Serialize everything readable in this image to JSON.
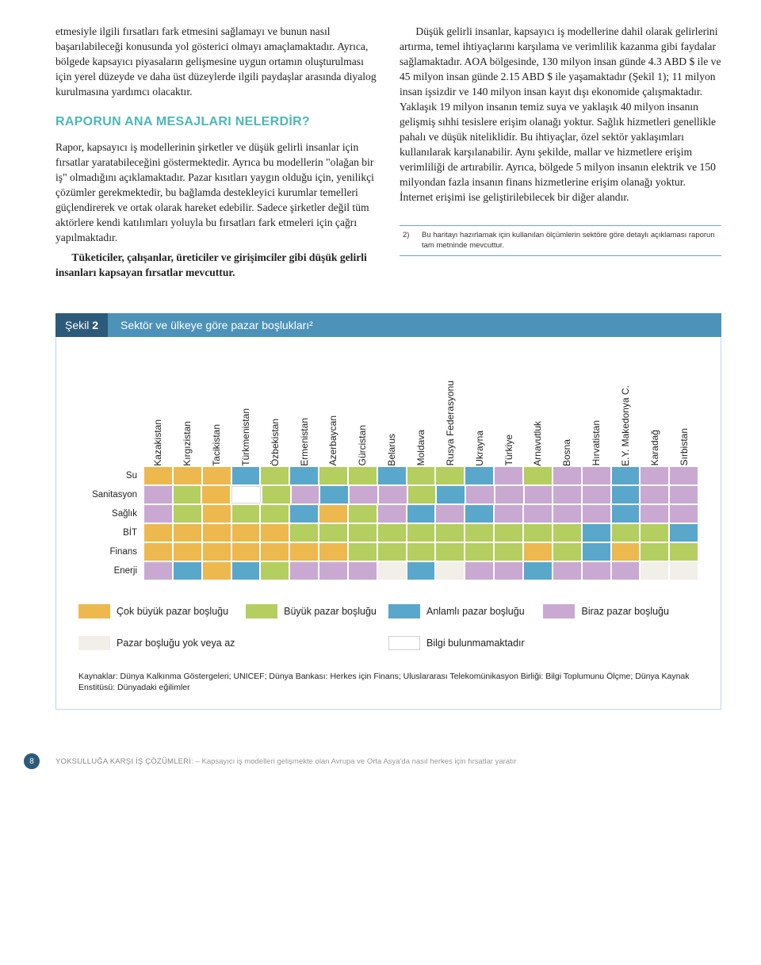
{
  "text": {
    "left_p1": "etmesiyle ilgili fırsatları fark etmesini sağlamayı ve bunun nasıl başarılabileceği konusunda yol gösterici olmayı amaçlamaktadır. Ayrıca, bölgede kapsayıcı piyasaların gelişmesine uygun ortamın oluşturulması için yerel düzeyde ve daha üst düzeylerde ilgili paydaşlar arasında diyalog kurulmasına yardımcı olacaktır.",
    "left_head": "RAPORUN ANA MESAJLARI NELERDİR?",
    "left_p2": "Rapor, kapsayıcı iş modellerinin şirketler ve düşük gelirli insanlar için fırsatlar yaratabileceğini göstermektedir. Ayrıca bu modellerin \"olağan bir iş\" olmadığını açıklamaktadır. Pazar kısıtları yaygın olduğu için, yenilikçi çözümler gerekmektedir, bu bağlamda destekleyici kurumlar temelleri güçlendirerek ve ortak olarak hareket edebilir. Sadece şirketler değil tüm aktörlere kendi katılımları yoluyla bu fırsatları fark etmeleri için çağrı yapılmaktadır.",
    "left_p3": "Tüketiciler, çalışanlar, üreticiler ve girişimciler gibi düşük gelirli insanları kapsayan fırsatlar mevcuttur.",
    "right_p1": "Düşük gelirli insanlar, kapsayıcı iş modellerine dahil olarak gelirlerini artırma, temel ihtiyaçlarını karşılama ve verimlilik kazanma gibi faydalar sağlamaktadır. AOA bölgesinde, 130 milyon insan günde 4.3 ABD $ ile ve 45 milyon insan günde 2.15 ABD $ ile yaşamaktadır (Şekil 1); 11 milyon insan işsizdir ve 140 milyon insan kayıt dışı ekonomide çalışmaktadır. Yaklaşık 19 milyon insanın temiz suya ve yaklaşık 40 milyon insanın gelişmiş sıhhi tesislere erişim olanağı yoktur. Sağlık hizmetleri genellikle pahalı ve düşük niteliklidir. Bu ihtiyaçlar, özel sektör yaklaşımları kullanılarak karşılanabilir. Aynı şekilde, mallar ve hizmetlere erişim verimliliği de artırabilir. Ayrıca, bölgede 5 milyon insanın elektrik ve 150 milyondan fazla insanın finans hizmetlerine erişim olanağı yoktur. İnternet erişimi ise geliştirilebilecek bir diğer alandır.",
    "footnote_num": "2)",
    "footnote": "Bu haritayı hazırlamak için kullanılan ölçümlerin sektöre göre detaylı açıklaması raporun tam metninde mevcuttur."
  },
  "figure": {
    "label_word": "Şekil",
    "label_num": "2",
    "title": "Sektör ve ülkeye göre pazar boşlukları²",
    "rows": [
      "Su",
      "Sanitasyon",
      "Sağlık",
      "BİT",
      "Finans",
      "Enerji"
    ],
    "columns": [
      "Kazakistan",
      "Kırgızistan",
      "Tacikistan",
      "Türkmenistan",
      "Özbekistan",
      "Ermenistan",
      "Azerbaycan",
      "Gürcistan",
      "Belarus",
      "Moldava",
      "Rusya Federasyonu",
      "Ukrayna",
      "Türkiye",
      "Arnavutluk",
      "Bosna",
      "Hırvatistan",
      "E.Y. Makedonya C.",
      "Karadağ",
      "Sırbistan"
    ],
    "palette": {
      "0": "#f2efe8",
      "1": "#ffffff",
      "2": "#c9a9d1",
      "3": "#5aa7cc",
      "4": "#b4ce5f",
      "5": "#edb84e"
    },
    "matrix": [
      [
        5,
        5,
        5,
        3,
        4,
        3,
        4,
        4,
        3,
        4,
        4,
        3,
        2,
        4,
        2,
        2,
        3,
        2,
        2
      ],
      [
        2,
        4,
        5,
        1,
        4,
        2,
        3,
        2,
        2,
        4,
        3,
        2,
        2,
        2,
        2,
        2,
        3,
        2,
        2
      ],
      [
        2,
        4,
        5,
        4,
        4,
        3,
        5,
        4,
        2,
        3,
        2,
        3,
        2,
        2,
        2,
        2,
        3,
        2,
        2
      ],
      [
        5,
        5,
        5,
        5,
        5,
        4,
        4,
        4,
        4,
        4,
        4,
        4,
        4,
        4,
        4,
        3,
        4,
        4,
        3
      ],
      [
        5,
        5,
        5,
        5,
        5,
        5,
        5,
        4,
        4,
        4,
        4,
        4,
        4,
        5,
        4,
        3,
        5,
        4,
        4
      ],
      [
        2,
        3,
        5,
        3,
        4,
        2,
        2,
        2,
        0,
        3,
        0,
        2,
        2,
        3,
        2,
        2,
        2,
        0,
        0
      ]
    ],
    "legend": [
      {
        "label": "Çok büyük pazar boşluğu",
        "key": "5"
      },
      {
        "label": "Büyük pazar boşluğu",
        "key": "4"
      },
      {
        "label": "Anlamlı pazar boşluğu",
        "key": "3"
      },
      {
        "label": "Biraz pazar boşluğu",
        "key": "2"
      },
      {
        "label": "Pazar boşluğu yok veya az",
        "key": "0"
      },
      {
        "label": "Bilgi bulunmamaktadır",
        "key": "1"
      }
    ],
    "sources": "Kaynaklar: Dünya Kalkınma Göstergeleri; UNICEF;  Dünya Bankası: Herkes için Finans;  Uluslararası Telekomünikasyon Birliği: Bilgi Toplumunu Ölçme; Dünya Kaynak Enstitüsü: Dünyadaki eğilimler"
  },
  "footer": {
    "page_num": "8",
    "title": "YOKSULLUĞA KARŞI İŞ ÇÖZÜMLERİ:",
    "subtitle": " – Kapsayıcı iş modelleri gelişmekte olan Avrupa ve Orta Asya'da nasıl herkes için fırsatlar yaratır"
  }
}
